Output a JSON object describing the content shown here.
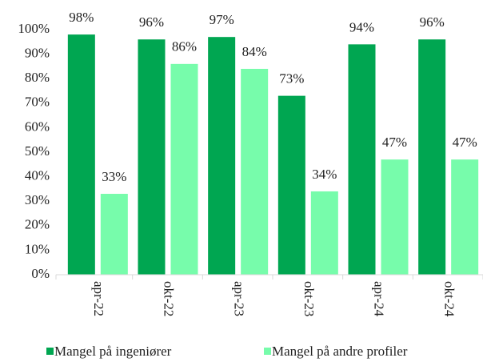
{
  "chart_data": {
    "type": "bar",
    "categories": [
      "apr-22",
      "okt-22",
      "apr-23",
      "okt-23",
      "apr-24",
      "okt-24"
    ],
    "series": [
      {
        "name": "Mangel på ingeniører",
        "color": "#00a651",
        "values": [
          98,
          96,
          97,
          73,
          94,
          96
        ],
        "value_labels": [
          "98%",
          "96%",
          "97%",
          "73%",
          "94%",
          "96%"
        ]
      },
      {
        "name": "Mangel på andre profiler",
        "color": "#77fcab",
        "values": [
          33,
          86,
          84,
          34,
          47,
          47
        ],
        "value_labels": [
          "33%",
          "86%",
          "84%",
          "34%",
          "47%",
          "47%"
        ]
      }
    ],
    "ylim": [
      0,
      100
    ],
    "yticks": [
      {
        "value": 0,
        "label": "0%"
      },
      {
        "value": 10,
        "label": "10%"
      },
      {
        "value": 20,
        "label": "20%"
      },
      {
        "value": 30,
        "label": "30%"
      },
      {
        "value": 40,
        "label": "40%"
      },
      {
        "value": 50,
        "label": "50%"
      },
      {
        "value": 60,
        "label": "60%"
      },
      {
        "value": 70,
        "label": "70%"
      },
      {
        "value": 80,
        "label": "80%"
      },
      {
        "value": 90,
        "label": "90%"
      },
      {
        "value": 100,
        "label": "100%"
      }
    ],
    "grid": false,
    "legend": "bottom"
  }
}
